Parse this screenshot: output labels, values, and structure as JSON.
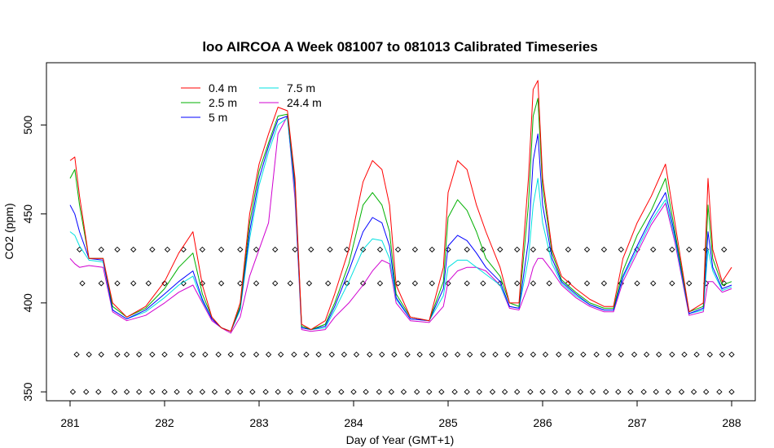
{
  "chart_data": {
    "type": "line",
    "title": "loo AIRCOA A  Week 081007 to 081013  Calibrated Timeseries",
    "xlabel": "Day of Year (GMT+1)",
    "ylabel": "CO2 (ppm)",
    "xlim": [
      280.75,
      288.25
    ],
    "ylim": [
      345,
      535
    ],
    "xticks": [
      281,
      282,
      283,
      284,
      285,
      286,
      287,
      288
    ],
    "yticks": [
      350,
      400,
      450,
      500
    ],
    "grid": false,
    "legend_position": "top-left",
    "series": [
      {
        "name": "0.4 m",
        "color": "#ff0000",
        "x": [
          281.0,
          281.05,
          281.1,
          281.2,
          281.35,
          281.45,
          281.6,
          281.8,
          282.0,
          282.15,
          282.3,
          282.4,
          282.5,
          282.6,
          282.7,
          282.8,
          282.9,
          283.0,
          283.1,
          283.2,
          283.3,
          283.38,
          283.45,
          283.55,
          283.7,
          283.8,
          283.95,
          284.1,
          284.2,
          284.3,
          284.38,
          284.45,
          284.6,
          284.8,
          284.95,
          285.0,
          285.1,
          285.2,
          285.3,
          285.4,
          285.55,
          285.65,
          285.75,
          285.85,
          285.9,
          285.95,
          286.0,
          286.1,
          286.2,
          286.35,
          286.5,
          286.65,
          286.75,
          286.85,
          287.0,
          287.15,
          287.3,
          287.4,
          287.55,
          287.7,
          287.75,
          287.8,
          287.9,
          288.0
        ],
        "y": [
          480,
          482,
          460,
          425,
          425,
          400,
          392,
          398,
          412,
          428,
          440,
          410,
          392,
          386,
          384,
          400,
          450,
          478,
          495,
          510,
          508,
          470,
          388,
          385,
          390,
          405,
          430,
          468,
          480,
          475,
          455,
          410,
          392,
          390,
          420,
          462,
          480,
          475,
          455,
          440,
          420,
          400,
          400,
          470,
          520,
          525,
          470,
          430,
          415,
          408,
          402,
          398,
          398,
          425,
          445,
          460,
          478,
          445,
          395,
          400,
          470,
          430,
          412,
          420
        ]
      },
      {
        "name": "2.5 m",
        "color": "#00b000",
        "x": [
          281.0,
          281.05,
          281.1,
          281.2,
          281.35,
          281.45,
          281.6,
          281.8,
          282.0,
          282.15,
          282.3,
          282.4,
          282.5,
          282.6,
          282.7,
          282.8,
          282.9,
          283.0,
          283.1,
          283.2,
          283.3,
          283.38,
          283.45,
          283.55,
          283.7,
          283.8,
          283.95,
          284.1,
          284.2,
          284.3,
          284.38,
          284.45,
          284.6,
          284.8,
          284.95,
          285.0,
          285.1,
          285.2,
          285.3,
          285.4,
          285.55,
          285.65,
          285.75,
          285.85,
          285.9,
          285.95,
          286.0,
          286.1,
          286.2,
          286.35,
          286.5,
          286.65,
          286.75,
          286.85,
          287.0,
          287.15,
          287.3,
          287.4,
          287.55,
          287.7,
          287.75,
          287.8,
          287.9,
          288.0
        ],
        "y": [
          470,
          475,
          455,
          425,
          425,
          398,
          392,
          397,
          408,
          420,
          428,
          405,
          392,
          386,
          384,
          398,
          445,
          474,
          490,
          505,
          506,
          468,
          387,
          385,
          388,
          400,
          422,
          455,
          462,
          455,
          440,
          405,
          392,
          390,
          412,
          448,
          458,
          452,
          440,
          425,
          415,
          400,
          398,
          455,
          505,
          515,
          465,
          428,
          413,
          406,
          400,
          397,
          397,
          418,
          438,
          452,
          470,
          440,
          395,
          398,
          455,
          425,
          410,
          412
        ]
      },
      {
        "name": "5 m",
        "color": "#0000ff",
        "x": [
          281.0,
          281.05,
          281.1,
          281.2,
          281.35,
          281.45,
          281.6,
          281.8,
          282.0,
          282.15,
          282.3,
          282.4,
          282.5,
          282.6,
          282.7,
          282.8,
          282.9,
          283.0,
          283.1,
          283.2,
          283.3,
          283.38,
          283.45,
          283.55,
          283.7,
          283.8,
          283.95,
          284.1,
          284.2,
          284.3,
          284.38,
          284.45,
          284.6,
          284.8,
          284.95,
          285.0,
          285.1,
          285.2,
          285.3,
          285.4,
          285.55,
          285.65,
          285.75,
          285.85,
          285.9,
          285.95,
          286.0,
          286.1,
          286.2,
          286.35,
          286.5,
          286.65,
          286.75,
          286.85,
          287.0,
          287.15,
          287.3,
          287.4,
          287.55,
          287.7,
          287.75,
          287.8,
          287.9,
          288.0
        ],
        "y": [
          455,
          450,
          440,
          425,
          424,
          396,
          391,
          396,
          405,
          412,
          418,
          402,
          391,
          386,
          384,
          397,
          440,
          470,
          488,
          503,
          505,
          465,
          386,
          385,
          387,
          398,
          418,
          440,
          448,
          445,
          432,
          403,
          391,
          390,
          408,
          432,
          438,
          435,
          428,
          420,
          412,
          398,
          397,
          435,
          480,
          495,
          455,
          425,
          412,
          405,
          399,
          396,
          396,
          415,
          432,
          448,
          462,
          438,
          394,
          397,
          440,
          420,
          408,
          410
        ]
      },
      {
        "name": "7.5 m",
        "color": "#00e0e0",
        "x": [
          281.0,
          281.05,
          281.1,
          281.2,
          281.35,
          281.45,
          281.6,
          281.8,
          282.0,
          282.15,
          282.3,
          282.4,
          282.5,
          282.6,
          282.7,
          282.8,
          282.9,
          283.0,
          283.1,
          283.2,
          283.3,
          283.38,
          283.45,
          283.55,
          283.7,
          283.8,
          283.95,
          284.1,
          284.2,
          284.3,
          284.38,
          284.45,
          284.6,
          284.8,
          284.95,
          285.0,
          285.1,
          285.2,
          285.3,
          285.4,
          285.55,
          285.65,
          285.75,
          285.85,
          285.9,
          285.95,
          286.0,
          286.1,
          286.2,
          286.35,
          286.5,
          286.65,
          286.75,
          286.85,
          287.0,
          287.15,
          287.3,
          287.4,
          287.55,
          287.7,
          287.75,
          287.8,
          287.9,
          288.0
        ],
        "y": [
          440,
          438,
          432,
          424,
          423,
          396,
          391,
          395,
          403,
          410,
          415,
          401,
          391,
          386,
          384,
          396,
          436,
          466,
          485,
          500,
          504,
          462,
          386,
          385,
          386,
          396,
          412,
          430,
          436,
          435,
          425,
          402,
          391,
          390,
          404,
          420,
          424,
          424,
          420,
          416,
          410,
          398,
          397,
          425,
          455,
          470,
          445,
          422,
          411,
          404,
          399,
          396,
          396,
          414,
          430,
          446,
          458,
          436,
          394,
          396,
          430,
          418,
          407,
          409
        ]
      },
      {
        "name": "24.4 m",
        "color": "#d000d0",
        "x": [
          281.0,
          281.05,
          281.1,
          281.2,
          281.35,
          281.45,
          281.6,
          281.8,
          282.0,
          282.15,
          282.3,
          282.4,
          282.5,
          282.6,
          282.7,
          282.8,
          282.9,
          283.0,
          283.1,
          283.2,
          283.3,
          283.38,
          283.45,
          283.55,
          283.7,
          283.8,
          283.95,
          284.1,
          284.2,
          284.3,
          284.38,
          284.45,
          284.6,
          284.8,
          284.95,
          285.0,
          285.1,
          285.2,
          285.3,
          285.4,
          285.55,
          285.65,
          285.75,
          285.85,
          285.9,
          285.95,
          286.0,
          286.1,
          286.2,
          286.35,
          286.5,
          286.65,
          286.75,
          286.85,
          287.0,
          287.15,
          287.3,
          287.4,
          287.55,
          287.7,
          287.75,
          287.8,
          287.9,
          288.0
        ],
        "y": [
          425,
          422,
          420,
          421,
          420,
          395,
          390,
          393,
          400,
          406,
          410,
          400,
          390,
          386,
          383,
          392,
          415,
          430,
          445,
          495,
          505,
          458,
          385,
          384,
          385,
          392,
          400,
          410,
          418,
          424,
          422,
          400,
          390,
          389,
          398,
          412,
          418,
          420,
          420,
          418,
          410,
          397,
          396,
          410,
          420,
          425,
          425,
          418,
          410,
          403,
          398,
          395,
          395,
          412,
          428,
          444,
          456,
          434,
          393,
          395,
          412,
          412,
          406,
          408
        ]
      }
    ],
    "marker_rows": [
      {
        "y": 430,
        "x": [
          281.1,
          281.33,
          281.5,
          281.67,
          281.87,
          282.03,
          282.2,
          282.4,
          282.6,
          282.8,
          282.97,
          283.17,
          283.38,
          283.55,
          283.75,
          283.93,
          284.1,
          284.28,
          284.47,
          284.65,
          284.83,
          285.0,
          285.2,
          285.37,
          285.55,
          285.73,
          285.9,
          286.07,
          286.27,
          286.47,
          286.65,
          286.83,
          287.0,
          287.17,
          287.37,
          287.55,
          287.73,
          287.92
        ]
      },
      {
        "y": 411,
        "x": [
          281.13,
          281.33,
          281.5,
          281.67,
          281.83,
          282.0,
          282.2,
          282.4,
          282.6,
          282.8,
          282.97,
          283.17,
          283.33,
          283.53,
          283.73,
          283.93,
          284.1,
          284.28,
          284.47,
          284.65,
          284.83,
          285.0,
          285.2,
          285.37,
          285.55,
          285.73,
          285.9,
          286.07,
          286.27,
          286.47,
          286.65,
          286.83,
          287.0,
          287.17,
          287.37,
          287.55,
          287.73,
          287.92
        ]
      },
      {
        "y": 371,
        "x": [
          281.07,
          281.2,
          281.33,
          281.5,
          281.6,
          281.73,
          281.87,
          282.0,
          282.17,
          282.3,
          282.43,
          282.57,
          282.7,
          282.83,
          282.97,
          283.1,
          283.23,
          283.37,
          283.5,
          283.63,
          283.77,
          283.9,
          284.03,
          284.17,
          284.3,
          284.43,
          284.57,
          284.7,
          284.83,
          284.97,
          285.1,
          285.23,
          285.37,
          285.5,
          285.63,
          285.77,
          285.9,
          286.03,
          286.17,
          286.3,
          286.43,
          286.57,
          286.7,
          286.83,
          286.97,
          287.1,
          287.23,
          287.37,
          287.5,
          287.63,
          287.77,
          287.9,
          288.0
        ]
      },
      {
        "y": 350,
        "x": [
          281.03,
          281.17,
          281.3,
          281.47,
          281.6,
          281.73,
          281.87,
          282.0,
          282.13,
          282.27,
          282.4,
          282.53,
          282.67,
          282.8,
          282.93,
          283.07,
          283.2,
          283.33,
          283.47,
          283.6,
          283.73,
          283.87,
          284.0,
          284.13,
          284.27,
          284.4,
          284.53,
          284.67,
          284.8,
          284.93,
          285.07,
          285.2,
          285.33,
          285.47,
          285.6,
          285.73,
          285.87,
          286.0,
          286.13,
          286.27,
          286.4,
          286.53,
          286.67,
          286.8,
          286.93,
          287.07,
          287.2,
          287.33,
          287.47,
          287.6,
          287.73,
          287.87,
          288.0
        ]
      }
    ]
  }
}
